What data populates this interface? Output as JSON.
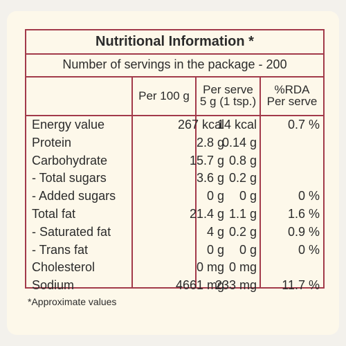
{
  "title": "Nutritional Information *",
  "servings": "Number of servings in the package - 200",
  "headers": {
    "per100": "Per 100 g",
    "per_serve_line1": "Per serve",
    "per_serve_line2": "5 g (1 tsp.)",
    "rda_line1": "%RDA",
    "rda_line2": "Per serve"
  },
  "rows": [
    {
      "name": "Energy value",
      "per100": "267 kcal",
      "serve": "14 kcal",
      "rda": "0.7 %"
    },
    {
      "name": "Protein",
      "per100": "2.8 g",
      "serve": "0.14 g",
      "rda": ""
    },
    {
      "name": "Carbohydrate",
      "per100": "15.7 g",
      "serve": "0.8 g",
      "rda": ""
    },
    {
      "name": " - Total sugars",
      "per100": "3.6 g",
      "serve": "0.2 g",
      "rda": ""
    },
    {
      "name": " - Added sugars",
      "per100": "0 g",
      "serve": "0 g",
      "rda": "0 %"
    },
    {
      "name": "Total fat",
      "per100": "21.4 g",
      "serve": "1.1 g",
      "rda": "1.6 %"
    },
    {
      "name": " - Saturated fat",
      "per100": "4 g",
      "serve": "0.2 g",
      "rda": "0.9 %"
    },
    {
      "name": " - Trans fat",
      "per100": "0 g",
      "serve": "0 g",
      "rda": "0 %"
    },
    {
      "name": "Cholesterol",
      "per100": "0 mg",
      "serve": "0 mg",
      "rda": ""
    },
    {
      "name": "Sodium",
      "per100": "4661 mg",
      "serve": "233 mg",
      "rda": "11.7 %"
    }
  ],
  "footnote": "*Approximate values",
  "colors": {
    "border": "#a23a4a",
    "panel": "#fdf8ea",
    "text": "#2b2b2b"
  }
}
